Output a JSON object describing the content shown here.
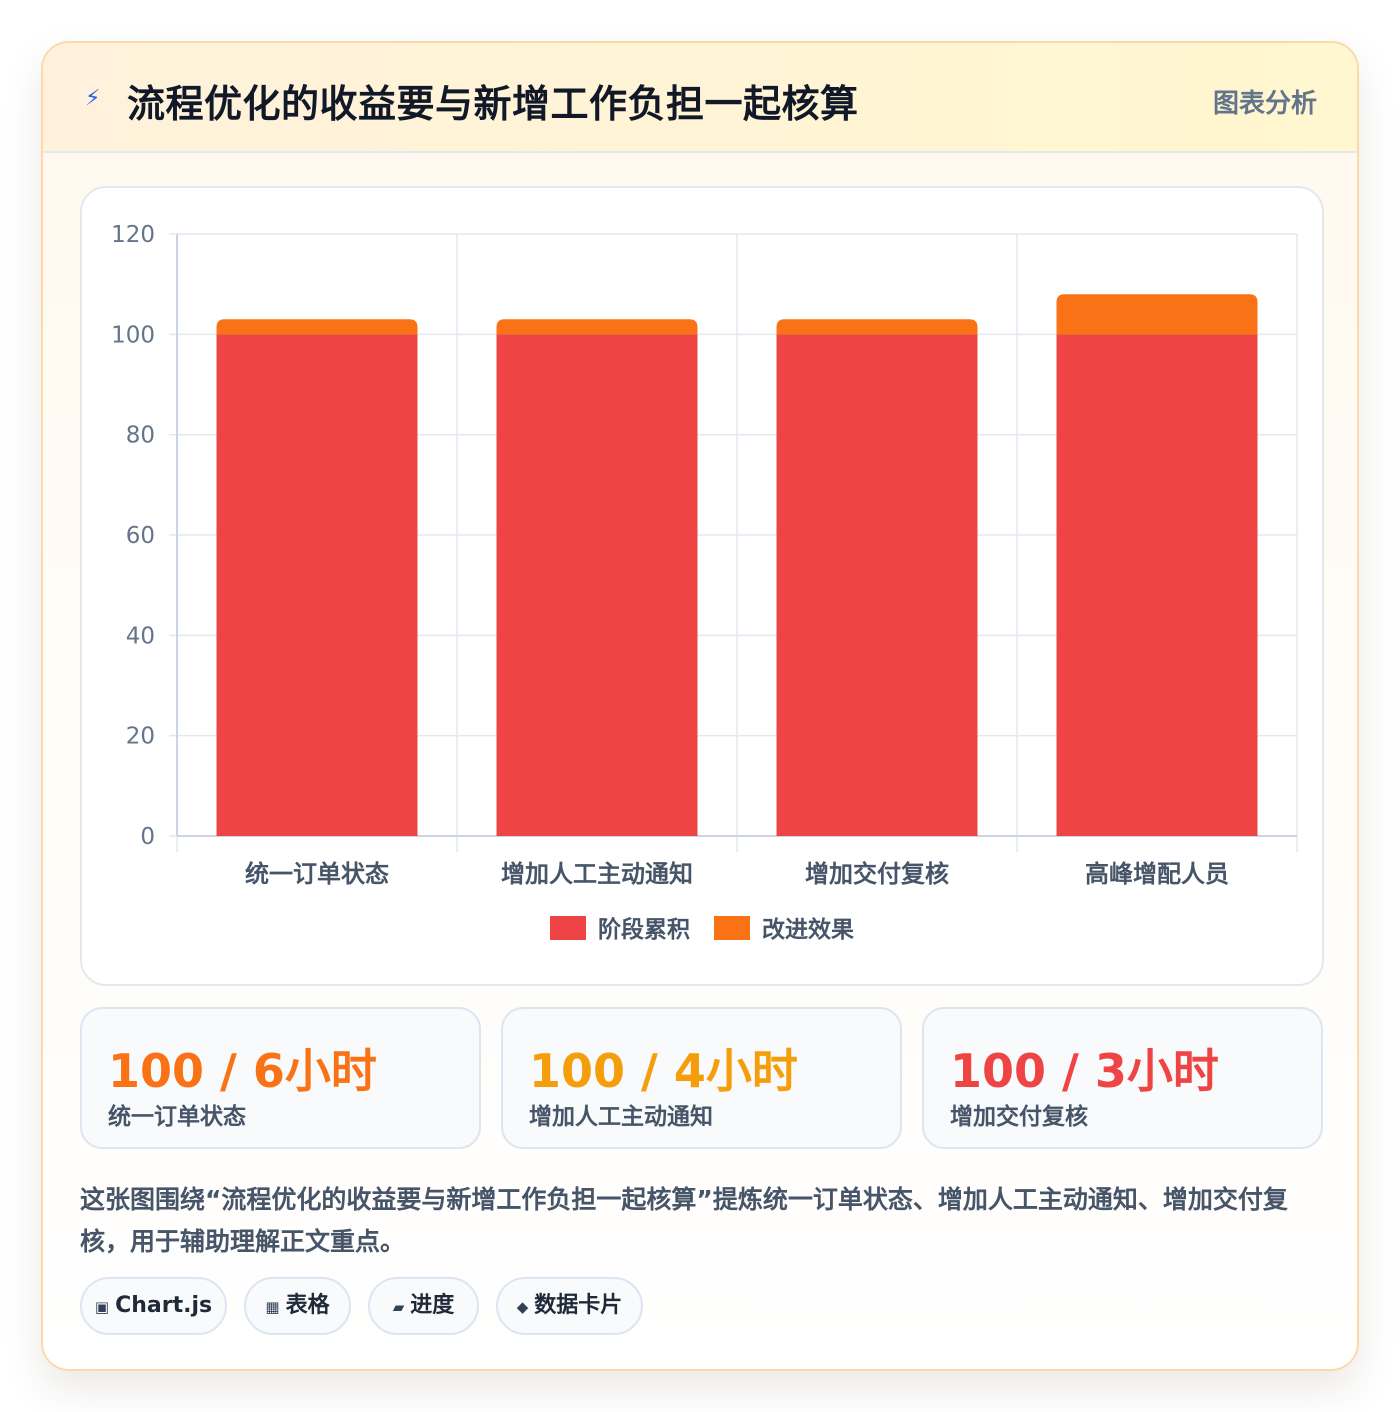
{
  "header": {
    "title": "流程优化的收益要与新增工作负担一起核算",
    "tag": "图表分析"
  },
  "chart_data": {
    "type": "bar",
    "stacked": true,
    "categories": [
      "统一订单状态",
      "增加人工主动通知",
      "增加交付复核",
      "高峰增配人员"
    ],
    "series": [
      {
        "name": "阶段累积",
        "color": "#ef4444",
        "values": [
          100,
          100,
          100,
          100
        ]
      },
      {
        "name": "改进效果",
        "color": "#f97316",
        "values": [
          3,
          3,
          3,
          8
        ]
      }
    ],
    "ylim": [
      0,
      120
    ],
    "yticks": [
      0,
      20,
      40,
      60,
      80,
      100,
      120
    ],
    "grid": true,
    "legend": "bottom"
  },
  "stats": [
    {
      "value": "100 / 6小时",
      "label": "统一订单状态",
      "color": "#f97316"
    },
    {
      "value": "100 / 4小时",
      "label": "增加人工主动通知",
      "color": "#f59e0b"
    },
    {
      "value": "100 / 3小时",
      "label": "增加交付复核",
      "color": "#ef4444"
    }
  ],
  "description": "这张图围绕“流程优化的收益要与新增工作负担一起核算”提炼统一订单状态、增加人工主动通知、增加交付复核，用于辅助理解正文重点。",
  "chips": [
    {
      "icon": "▣",
      "icon_name": "chart-icon",
      "label": "Chart.js"
    },
    {
      "icon": "▦",
      "icon_name": "table-icon",
      "label": "表格"
    },
    {
      "icon": "▰",
      "icon_name": "progress-icon",
      "label": "进度"
    },
    {
      "icon": "◆",
      "icon_name": "data-card-icon",
      "label": "数据卡片"
    }
  ]
}
